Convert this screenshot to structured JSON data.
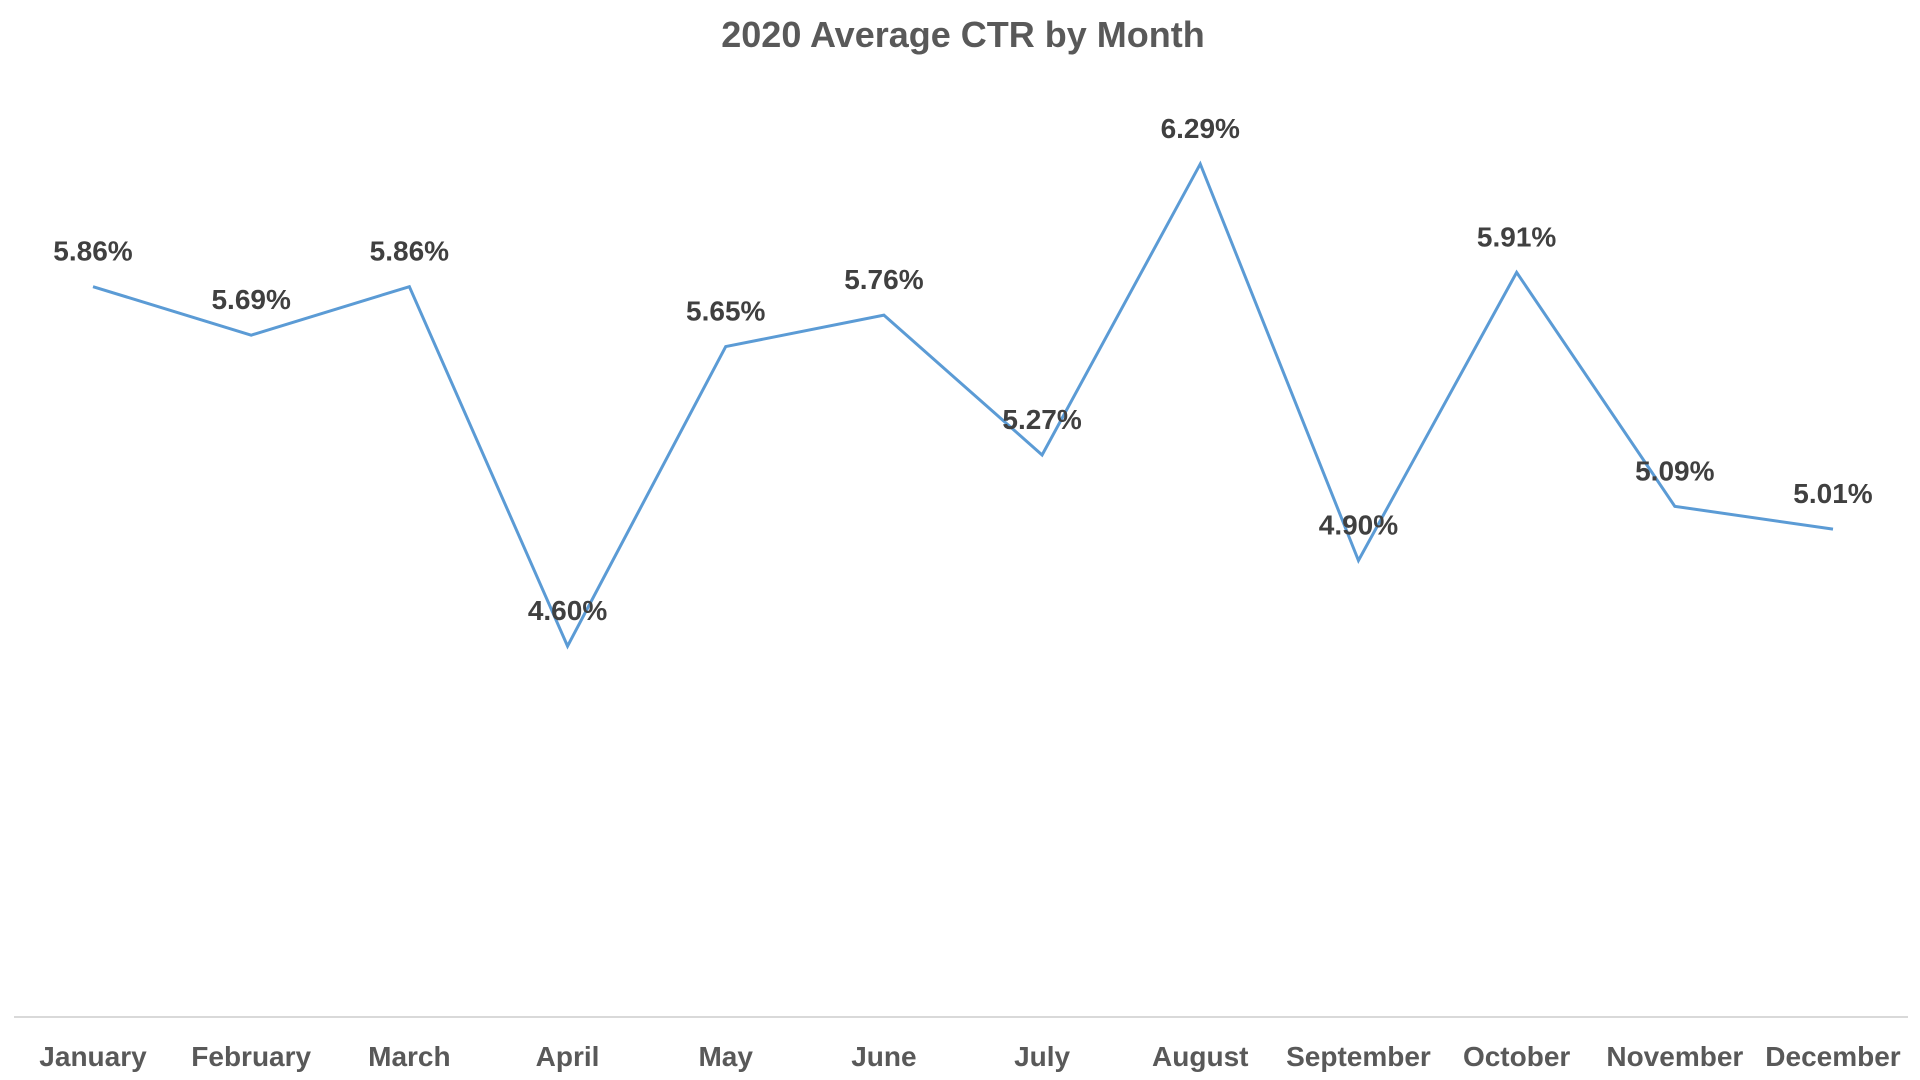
{
  "chart_data": {
    "type": "line",
    "title": "2020 Average CTR by Month",
    "xlabel": "",
    "ylabel": "",
    "categories": [
      "January",
      "February",
      "March",
      "April",
      "May",
      "June",
      "July",
      "August",
      "September",
      "October",
      "November",
      "December"
    ],
    "series": [
      {
        "values": [
          5.86,
          5.69,
          5.86,
          4.6,
          5.65,
          5.76,
          5.27,
          6.29,
          4.9,
          5.91,
          5.09,
          5.01
        ],
        "data_labels": [
          "5.86%",
          "5.69%",
          "5.86%",
          "4.60%",
          "5.65%",
          "5.76%",
          "5.27%",
          "6.29%",
          "4.90%",
          "5.91%",
          "5.09%",
          "5.01%"
        ],
        "color": "#5B9BD5"
      }
    ],
    "ylim": [
      3.3,
      6.7
    ],
    "grid": false,
    "legend": "none",
    "axis_color": "#D9D9D9"
  }
}
